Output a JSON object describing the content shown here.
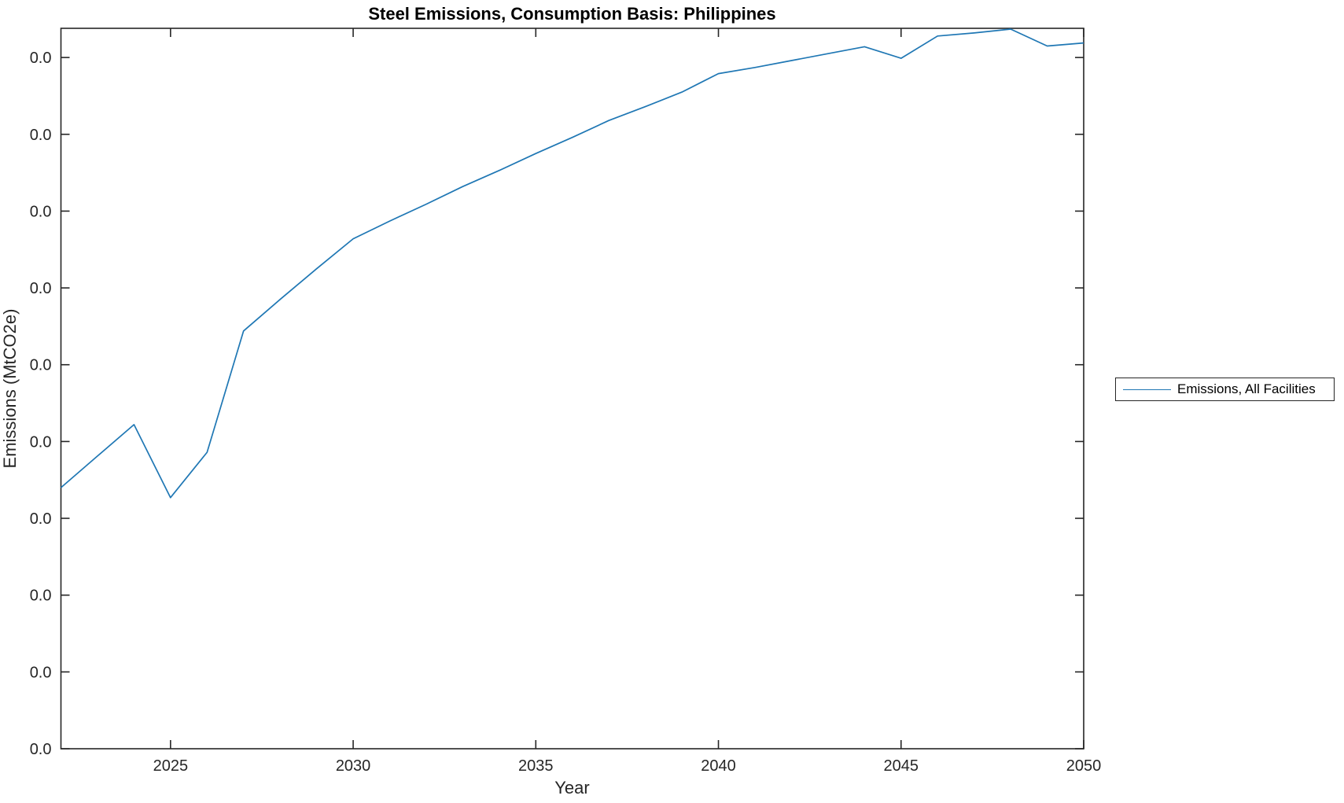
{
  "figure": {
    "title": "Steel Emissions, Consumption Basis: Philippines",
    "x_axis_label": "Year",
    "y_axis_label": "Emissions (MtCO2e)",
    "legend": {
      "entries": [
        {
          "label": "Emissions, All Facilities",
          "color": "#1f77b4"
        }
      ],
      "position": "outside-right",
      "border_color": "#262626"
    },
    "colors": {
      "line": "#1f77b4",
      "axis": "#262626",
      "tick_text": "#262626",
      "title_text": "#000000",
      "background": "#ffffff"
    }
  },
  "chart_data": {
    "type": "line",
    "title": "Steel Emissions, Consumption Basis: Philippines",
    "xlabel": "Year",
    "ylabel": "Emissions (MtCO2e)",
    "grid": false,
    "box": true,
    "tick_direction": "in",
    "legend_position": "outside-right",
    "xlim": [
      2022,
      2050
    ],
    "ylim": [
      0,
      9.38
    ],
    "x_ticks": [
      2025,
      2030,
      2035,
      2040,
      2045,
      2050
    ],
    "x_tick_labels": [
      "2025",
      "2030",
      "2035",
      "2040",
      "2045",
      "2050"
    ],
    "y_ticks": [
      0,
      1,
      2,
      3,
      4,
      5,
      6,
      7,
      8,
      9
    ],
    "y_tick_labels": [
      "0.0",
      "0.0",
      "0.0",
      "0.0",
      "0.0",
      "0.0",
      "0.0",
      "0.0",
      "0.0",
      "0.0"
    ],
    "x": [
      2022,
      2023,
      2024,
      2025,
      2026,
      2027,
      2028,
      2029,
      2030,
      2031,
      2032,
      2033,
      2034,
      2035,
      2036,
      2037,
      2038,
      2039,
      2040,
      2041,
      2042,
      2043,
      2044,
      2045,
      2046,
      2047,
      2048,
      2049,
      2050
    ],
    "series": [
      {
        "name": "Emissions, All Facilities",
        "color": "#1f77b4",
        "values": [
          3.4,
          3.81,
          4.22,
          3.27,
          3.86,
          5.44,
          5.85,
          6.25,
          6.64,
          6.87,
          7.09,
          7.32,
          7.53,
          7.75,
          7.96,
          8.18,
          8.36,
          8.55,
          8.79,
          8.87,
          8.96,
          9.05,
          9.14,
          8.99,
          9.28,
          9.32,
          9.37,
          9.15,
          9.19
        ]
      }
    ],
    "note": "Every y-axis tick label renders as 0.0; series values are expressed in y-axis tick units (1 unit = spacing between adjacent 0.0 ticks), estimated from the plotted line position."
  }
}
